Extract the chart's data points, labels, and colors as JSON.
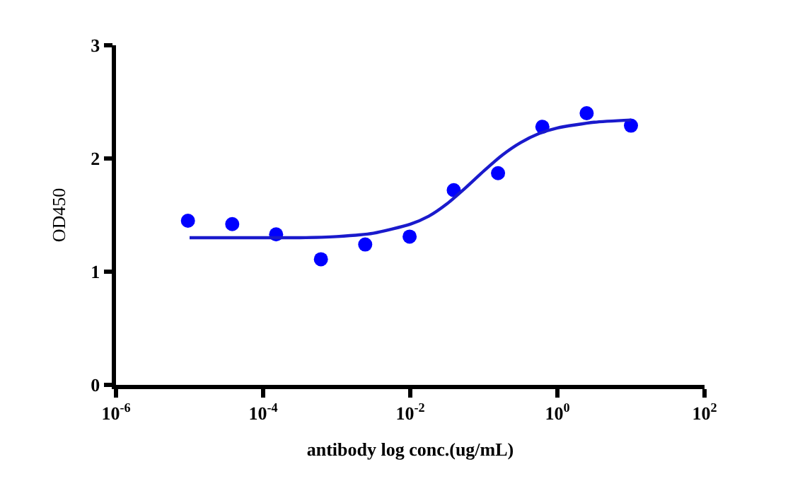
{
  "chart_data": {
    "type": "scatter",
    "xlabel": "antibody log conc.(ug/mL)",
    "ylabel": "OD450",
    "log": "x",
    "marker": "circle",
    "xlim": [
      1e-06,
      100
    ],
    "xticks": [
      {
        "value": 1e-06,
        "label": "10$^{-6}$"
      },
      {
        "value": 0.0001,
        "label": "10$^{-4}$"
      },
      {
        "value": 0.01,
        "label": "10$^{-2}$"
      },
      {
        "value": 1,
        "label": "10$^{0}$"
      },
      {
        "value": 100,
        "label": "10$^{2}$"
      }
    ],
    "ylim": [
      0,
      3
    ],
    "yticks": [
      0,
      1,
      2,
      3
    ],
    "series": [
      {
        "color": "#0000ff",
        "x": [
          9.5e-06,
          3.8e-05,
          0.00015,
          0.00061,
          0.00244,
          0.0098,
          0.039,
          0.156,
          0.625,
          2.5,
          10
        ],
        "values": [
          1.45,
          1.42,
          1.33,
          1.11,
          1.24,
          1.31,
          1.72,
          1.87,
          2.28,
          2.4,
          2.29
        ]
      },
      {
        "type": "line",
        "color": "#1a1acc",
        "marker": "none",
        "x": [
          1e-05,
          3.16e-05,
          0.0001,
          0.000316,
          0.001,
          0.00316,
          0.01,
          0.0178,
          0.0316,
          0.0562,
          0.1,
          0.178,
          0.316,
          0.562,
          1,
          3.16,
          10
        ],
        "values": [
          1.3,
          1.3,
          1.3,
          1.3,
          1.31,
          1.34,
          1.42,
          1.49,
          1.6,
          1.74,
          1.89,
          2.03,
          2.14,
          2.22,
          2.27,
          2.32,
          2.34
        ]
      }
    ]
  }
}
